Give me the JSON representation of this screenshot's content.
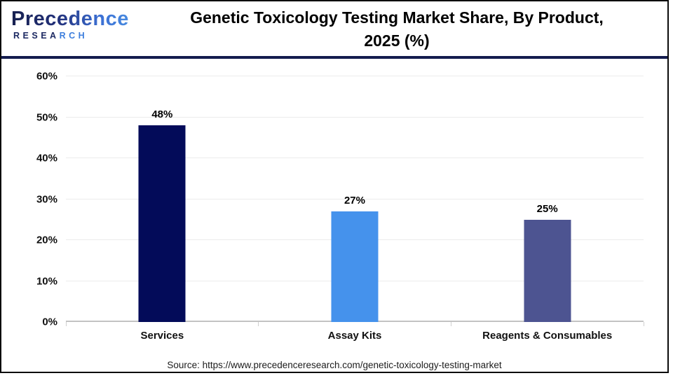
{
  "header": {
    "logo": {
      "brand": "Precedence",
      "research_part1": "RESEA",
      "research_part2": "RCH"
    },
    "title_line1": "Genetic Toxicology Testing Market Share, By Product,",
    "title_line2": "2025 (%)"
  },
  "chart_data": {
    "type": "bar",
    "title": "Genetic Toxicology Testing Market Share, By Product, 2025 (%)",
    "categories": [
      "Services",
      "Assay Kits",
      "Reagents & Consumables"
    ],
    "values": [
      48,
      27,
      25
    ],
    "value_labels": [
      "48%",
      "27%",
      "25%"
    ],
    "bar_colors": [
      "#030b59",
      "#4592ec",
      "#4d5491"
    ],
    "xlabel": "",
    "ylabel": "",
    "ylim": [
      0,
      60
    ],
    "ytick_step": 10,
    "ytick_labels": [
      "0%",
      "10%",
      "20%",
      "30%",
      "40%",
      "50%",
      "60%"
    ],
    "grid": true,
    "legend": "none"
  },
  "footer": {
    "source": "Source: https://www.precedenceresearch.com/genetic-toxicology-testing-market"
  },
  "colors": {
    "header_divider": "#131c4e",
    "gridline": "#ececec",
    "axis_line": "#c3c3c3",
    "logo_navy": "#1d2a63",
    "logo_blue": "#3e7fdd"
  }
}
